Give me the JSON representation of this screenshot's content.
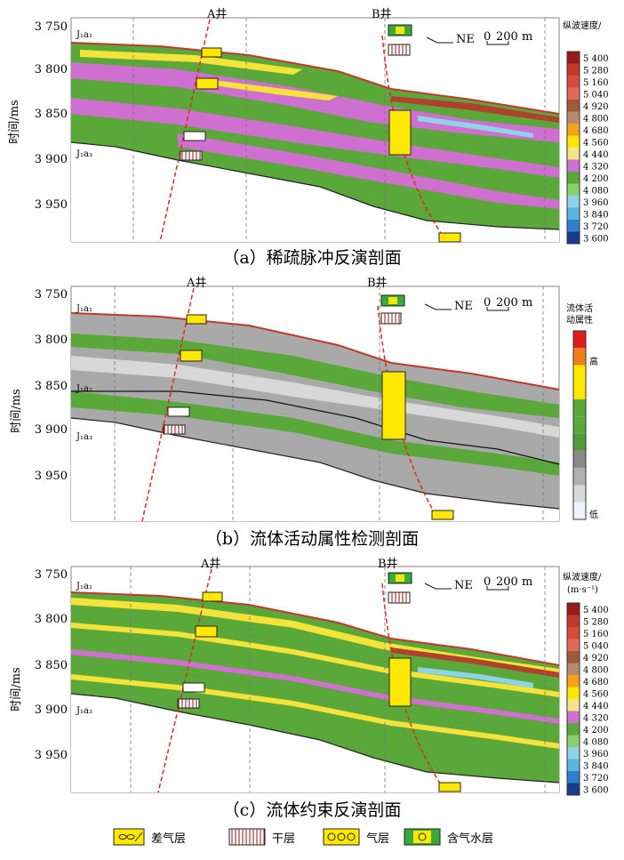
{
  "panels": [
    {
      "id": "a",
      "caption": "（a）稀疏脉冲反演剖面",
      "y_axis_label": "时间/ms",
      "ticks": [
        "3 750",
        "3 800",
        "3 850",
        "3 900",
        "3 950"
      ],
      "well_a": "A井",
      "well_b": "B井",
      "direction": "NE",
      "scale_zero": "0",
      "scale_value": "200 m",
      "layer_top": "J₁a₁",
      "layer_bottom": "J₁a₃",
      "legend_title_1": "纵波速度/",
      "legend_title_2": "(m·s⁻¹)",
      "legend_values": [
        "5 400",
        "5 280",
        "5 160",
        "5 040",
        "4 920",
        "4 800",
        "4 680",
        "4 560",
        "4 440",
        "4 320",
        "4 200",
        "4 080",
        "3 960",
        "3 840",
        "3 720",
        "3 600"
      ]
    },
    {
      "id": "b",
      "caption": "（b）流体活动属性检测剖面",
      "y_axis_label": "时间/ms",
      "ticks": [
        "3 750",
        "3 800",
        "3 850",
        "3 900",
        "3 950"
      ],
      "well_a": "A井",
      "well_b": "B井",
      "direction": "NE",
      "scale_zero": "0",
      "scale_value": "200 m",
      "layer_top": "J₁a₁",
      "layer_mid": "J₁a₂",
      "layer_bottom": "J₁a₃",
      "legend_title_1": "流体活",
      "legend_title_2": "动属性",
      "legend_high": "高",
      "legend_low": "低"
    },
    {
      "id": "c",
      "caption": "（c）流体约束反演剖面",
      "y_axis_label": "时间/ms",
      "ticks": [
        "3 750",
        "3 800",
        "3 850",
        "3 900",
        "3 950"
      ],
      "well_a": "A井",
      "well_b": "B井",
      "direction": "NE",
      "scale_zero": "0",
      "scale_value": "200 m",
      "layer_top": "J₁a₁",
      "layer_bottom": "J₁a₃",
      "legend_title_1": "纵波速度/",
      "legend_title_2": "(m·s⁻¹)",
      "legend_values": [
        "5 400",
        "5 280",
        "5 160",
        "5 040",
        "4 920",
        "4 800",
        "4 680",
        "4 560",
        "4 440",
        "4 320",
        "4 200",
        "4 080",
        "3 960",
        "3 840",
        "3 720",
        "3 600"
      ]
    }
  ],
  "bottom_legend": [
    {
      "symbol": "poor-gas",
      "label": "差气层"
    },
    {
      "symbol": "dry",
      "label": "干层"
    },
    {
      "symbol": "gas",
      "label": "气层"
    },
    {
      "symbol": "gas-water",
      "label": "含气水层"
    }
  ]
}
